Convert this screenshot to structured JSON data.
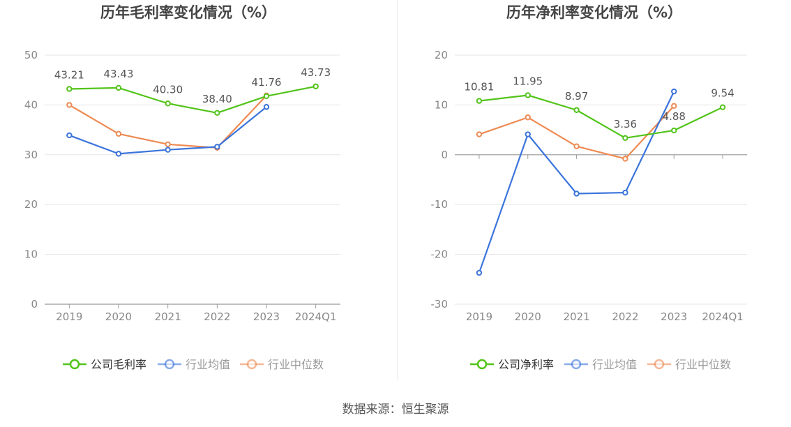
{
  "source_text": "数据来源：恒生聚源",
  "colors": {
    "company": "#52c41a",
    "industry_avg": "#3b74db",
    "industry_median": "#ee8a52",
    "axis_text": "#888888",
    "grid": "#e6e6e6",
    "title": "#444444",
    "label": "#555555"
  },
  "chart_data": [
    {
      "type": "line",
      "title": "历年毛利率变化情况（%）",
      "categories": [
        "2019",
        "2020",
        "2021",
        "2022",
        "2023",
        "2024Q1"
      ],
      "ylim": [
        0,
        50
      ],
      "yticks": [
        0,
        10,
        20,
        30,
        40,
        50
      ],
      "grid": true,
      "legend_position": "bottom",
      "series": [
        {
          "name": "公司毛利率",
          "key": "company",
          "values": [
            43.21,
            43.43,
            40.3,
            38.4,
            41.76,
            43.73
          ],
          "labels": [
            "43.21",
            "43.43",
            "40.30",
            "38.40",
            "41.76",
            "43.73"
          ]
        },
        {
          "name": "行业均值",
          "key": "industry_avg",
          "values": [
            33.9,
            30.2,
            31.0,
            31.6,
            39.6,
            null
          ]
        },
        {
          "name": "行业中位数",
          "key": "industry_median",
          "values": [
            40.0,
            34.2,
            32.1,
            31.4,
            41.9,
            null
          ]
        }
      ]
    },
    {
      "type": "line",
      "title": "历年净利率变化情况（%）",
      "categories": [
        "2019",
        "2020",
        "2021",
        "2022",
        "2023",
        "2024Q1"
      ],
      "ylim": [
        -30,
        20
      ],
      "yticks": [
        -30,
        -20,
        -10,
        0,
        10,
        20
      ],
      "grid": true,
      "legend_position": "bottom",
      "series": [
        {
          "name": "公司净利率",
          "key": "company",
          "values": [
            10.81,
            11.95,
            8.97,
            3.36,
            4.88,
            9.54
          ],
          "labels": [
            "10.81",
            "11.95",
            "8.97",
            "3.36",
            "4.88",
            "9.54"
          ]
        },
        {
          "name": "行业均值",
          "key": "industry_avg",
          "values": [
            -23.7,
            4.1,
            -7.8,
            -7.6,
            12.7,
            null
          ]
        },
        {
          "name": "行业中位数",
          "key": "industry_median",
          "values": [
            4.1,
            7.5,
            1.7,
            -0.8,
            9.8,
            null
          ]
        }
      ]
    }
  ]
}
